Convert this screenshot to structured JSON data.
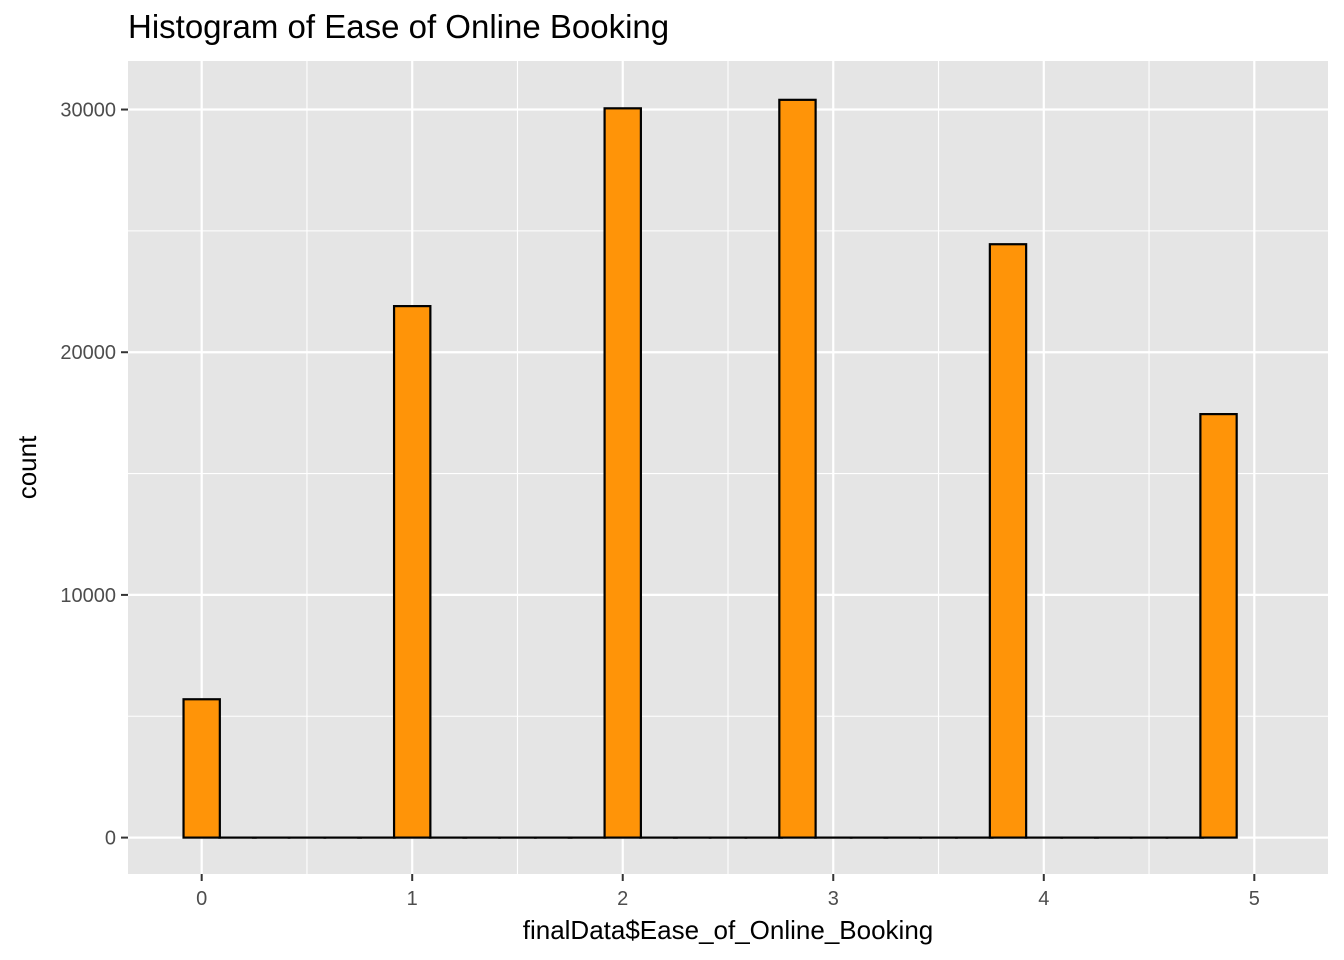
{
  "chart_data": {
    "type": "bar",
    "title": "Histogram of Ease of Online Booking",
    "xlabel": "finalData$Ease_of_Online_Booking",
    "ylabel": "count",
    "x_ticks": [
      "0",
      "1",
      "2",
      "3",
      "4",
      "5"
    ],
    "y_ticks": [
      "0",
      "10000",
      "20000",
      "30000"
    ],
    "xlim": [
      -0.35,
      5.35
    ],
    "ylim": [
      -1500,
      32000
    ],
    "grid": true,
    "bar_fill": "#FF9408",
    "bar_stroke": "#000000",
    "panel_background": "#E5E5E5",
    "grid_color": "#FFFFFF",
    "bins": [
      {
        "center": 0.0,
        "value": 5700
      },
      {
        "center": 0.17,
        "value": 0
      },
      {
        "center": 0.33,
        "value": 0
      },
      {
        "center": 0.5,
        "value": 0
      },
      {
        "center": 0.67,
        "value": 0
      },
      {
        "center": 0.83,
        "value": 0
      },
      {
        "center": 1.0,
        "value": 21900
      },
      {
        "center": 1.17,
        "value": 0
      },
      {
        "center": 1.33,
        "value": 0
      },
      {
        "center": 1.5,
        "value": 0
      },
      {
        "center": 1.67,
        "value": 0
      },
      {
        "center": 1.83,
        "value": 0
      },
      {
        "center": 2.0,
        "value": 30050
      },
      {
        "center": 2.17,
        "value": 0
      },
      {
        "center": 2.33,
        "value": 0
      },
      {
        "center": 2.5,
        "value": 0
      },
      {
        "center": 2.67,
        "value": 0
      },
      {
        "center": 2.83,
        "value": 30400
      },
      {
        "center": 3.0,
        "value": 0
      },
      {
        "center": 3.17,
        "value": 0
      },
      {
        "center": 3.33,
        "value": 0
      },
      {
        "center": 3.5,
        "value": 0
      },
      {
        "center": 3.67,
        "value": 0
      },
      {
        "center": 3.83,
        "value": 24450
      },
      {
        "center": 4.0,
        "value": 0
      },
      {
        "center": 4.17,
        "value": 0
      },
      {
        "center": 4.33,
        "value": 0
      },
      {
        "center": 4.5,
        "value": 0
      },
      {
        "center": 4.67,
        "value": 0
      },
      {
        "center": 4.83,
        "value": 17450
      }
    ]
  }
}
